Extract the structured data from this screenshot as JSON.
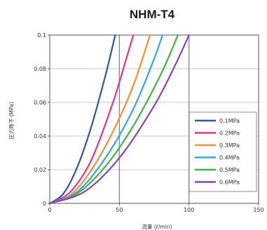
{
  "chart_data": {
    "type": "line",
    "title": "NHM-T4",
    "xlabel": "流量 (ℓ/min)",
    "ylabel": "圧力降下 (MPa)",
    "xlim": [
      0,
      150
    ],
    "ylim": [
      0,
      0.1
    ],
    "x_ticks": [
      "0",
      "50",
      "100",
      "150"
    ],
    "y_ticks": [
      "0",
      "0.02",
      "0.04",
      "0.06",
      "0.08",
      "0.1"
    ],
    "grid": true,
    "legend_position": "bottom-right",
    "series": [
      {
        "name": "0.1MPa",
        "color": "#2f56a8",
        "x": [
          0,
          10,
          20,
          30,
          40,
          47
        ],
        "y": [
          0,
          0.006,
          0.022,
          0.046,
          0.076,
          0.1
        ]
      },
      {
        "name": "0.2MPa",
        "color": "#e0358f",
        "x": [
          0,
          15,
          30,
          45,
          55,
          60
        ],
        "y": [
          0,
          0.007,
          0.026,
          0.059,
          0.086,
          0.1
        ]
      },
      {
        "name": "0.3MPa",
        "color": "#f0913a",
        "x": [
          0,
          15,
          30,
          45,
          60,
          72
        ],
        "y": [
          0,
          0.005,
          0.02,
          0.042,
          0.07,
          0.1
        ]
      },
      {
        "name": "0.4MPa",
        "color": "#35a7d9",
        "x": [
          0,
          20,
          40,
          60,
          75,
          81
        ],
        "y": [
          0,
          0.007,
          0.027,
          0.056,
          0.086,
          0.1
        ]
      },
      {
        "name": "0.5MPa",
        "color": "#44b24a",
        "x": [
          0,
          20,
          40,
          60,
          80,
          92
        ],
        "y": [
          0,
          0.006,
          0.022,
          0.046,
          0.077,
          0.1
        ]
      },
      {
        "name": "0.6MPa",
        "color": "#8a46a6",
        "x": [
          0,
          25,
          50,
          75,
          90,
          100
        ],
        "y": [
          0,
          0.007,
          0.027,
          0.058,
          0.082,
          0.1
        ]
      }
    ]
  }
}
